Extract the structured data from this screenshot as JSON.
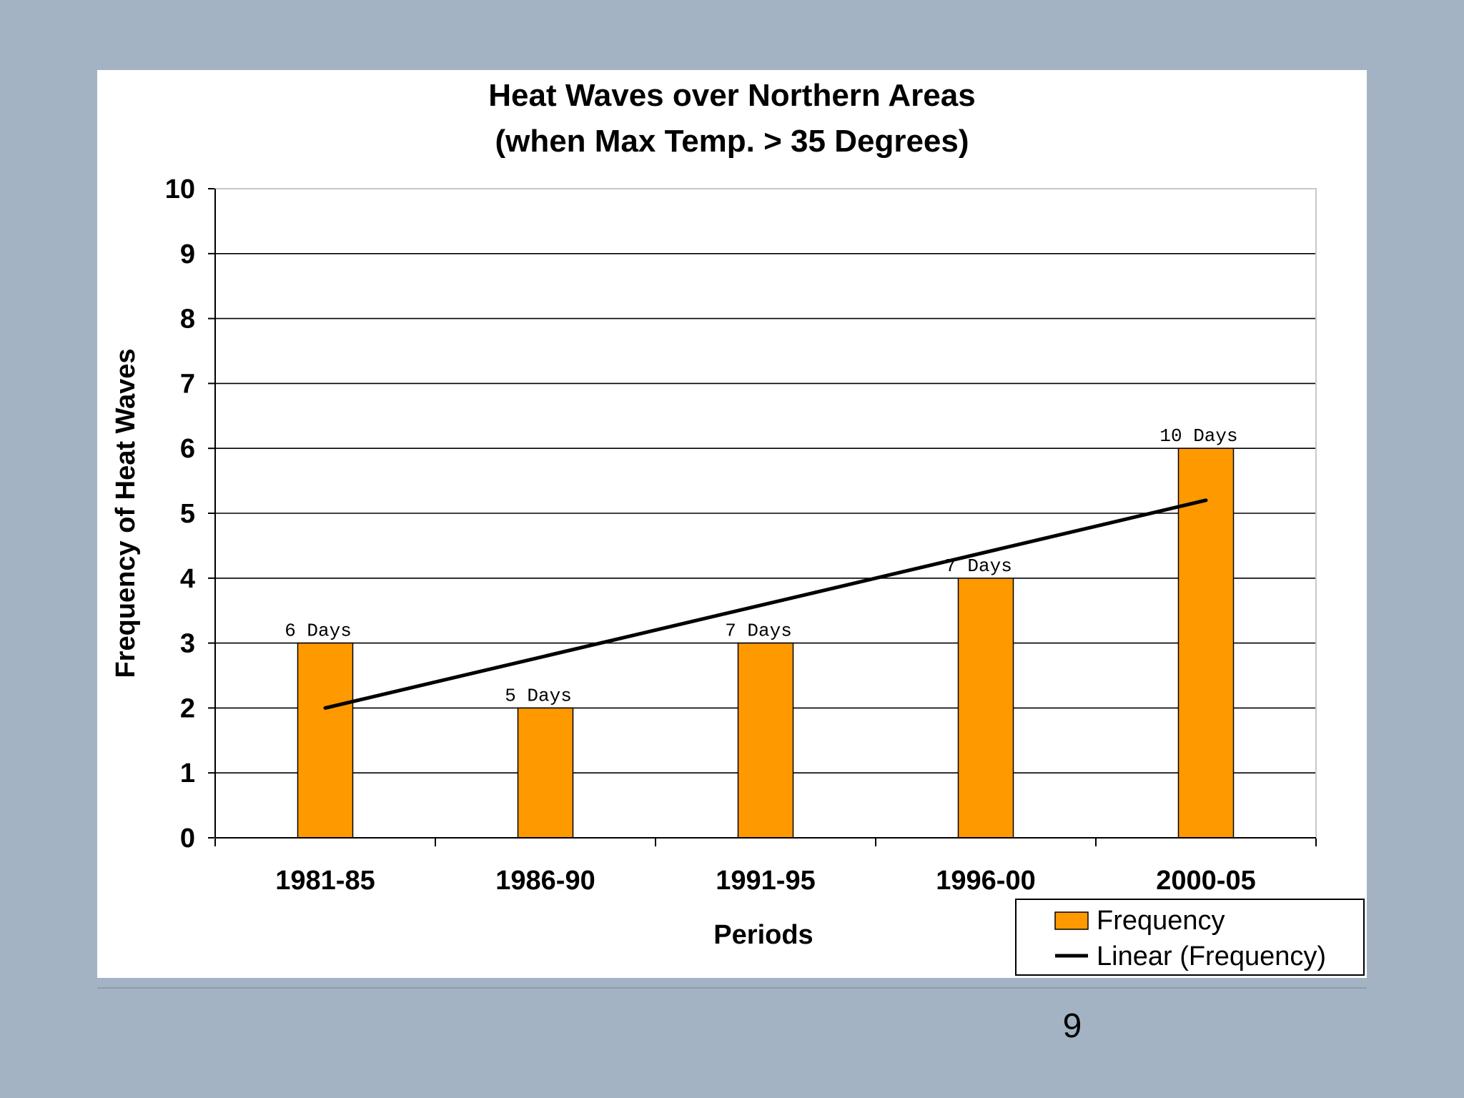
{
  "chart_data": {
    "type": "bar",
    "title": [
      "Heat Waves over Northern Areas",
      "(when Max Temp. > 35 Degrees)"
    ],
    "xlabel": "Periods",
    "ylabel": "Frequency of Heat Waves",
    "ylim": [
      0,
      10
    ],
    "yticks": [
      "0",
      "1",
      "2",
      "3",
      "4",
      "5",
      "6",
      "7",
      "8",
      "9",
      "10"
    ],
    "grid": true,
    "categories": [
      "1981-85",
      "1986-90",
      "1991-95",
      "1996-00",
      "2000-05"
    ],
    "series": [
      {
        "name": "Frequency",
        "kind": "bar",
        "color": "#ff9900",
        "values": [
          3,
          2,
          3,
          4,
          6
        ],
        "data_labels": [
          "6 Days",
          "5 Days",
          "7 Days",
          "7 Days",
          "10 Days"
        ]
      },
      {
        "name": "Linear (Frequency)",
        "kind": "trendline",
        "color": "#000000",
        "start": 2.0,
        "end": 5.2
      }
    ],
    "legend": {
      "position": "bottom-right",
      "entries": [
        "Frequency",
        "Linear (Frequency)"
      ]
    }
  },
  "slide": {
    "page_number": "9"
  }
}
